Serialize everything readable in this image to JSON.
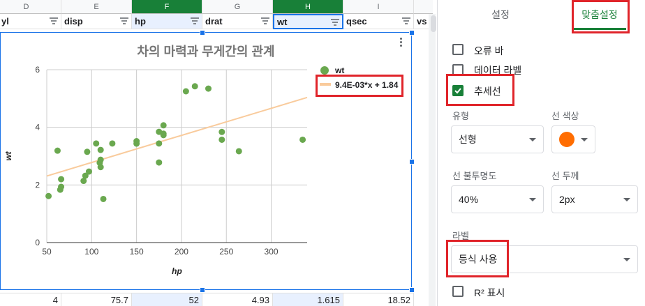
{
  "columns": [
    {
      "letter": "D",
      "header": "yl"
    },
    {
      "letter": "E",
      "header": "disp"
    },
    {
      "letter": "F",
      "header": "hp"
    },
    {
      "letter": "G",
      "header": "drat"
    },
    {
      "letter": "H",
      "header": "wt"
    },
    {
      "letter": "I",
      "header": "qsec"
    },
    {
      "letter": "",
      "header": "vs"
    }
  ],
  "bottom_row": [
    "4",
    "75.7",
    "52",
    "4.93",
    "1.615",
    "18.52"
  ],
  "chart": {
    "title": "차의 마력과 무게간의 관계",
    "legend_series": "wt",
    "legend_trend": "9.4E-03*x + 1.84"
  },
  "chart_data": {
    "type": "scatter",
    "title": "차의 마력과 무게간의 관계",
    "xlabel": "hp",
    "ylabel": "wt",
    "xlim": [
      50,
      340
    ],
    "ylim": [
      0,
      6
    ],
    "xticks": [
      "50",
      "100",
      "150",
      "200",
      "250",
      "300"
    ],
    "yticks": [
      "0",
      "2",
      "4",
      "6"
    ],
    "series": [
      {
        "name": "wt",
        "color": "#6aa84f",
        "points": [
          [
            52,
            1.615
          ],
          [
            62,
            3.19
          ],
          [
            65,
            1.835
          ],
          [
            66,
            1.935
          ],
          [
            66,
            2.2
          ],
          [
            91,
            2.14
          ],
          [
            93,
            2.32
          ],
          [
            95,
            3.15
          ],
          [
            97,
            2.465
          ],
          [
            105,
            3.44
          ],
          [
            109,
            2.77
          ],
          [
            110,
            2.62
          ],
          [
            110,
            2.875
          ],
          [
            110,
            3.215
          ],
          [
            113,
            1.513
          ],
          [
            123,
            3.44
          ],
          [
            150,
            3.52
          ],
          [
            150,
            3.435
          ],
          [
            175,
            3.44
          ],
          [
            175,
            2.78
          ],
          [
            175,
            3.845
          ],
          [
            180,
            4.07
          ],
          [
            180,
            3.73
          ],
          [
            180,
            3.78
          ],
          [
            205,
            5.25
          ],
          [
            215,
            5.424
          ],
          [
            230,
            5.345
          ],
          [
            245,
            3.57
          ],
          [
            245,
            3.84
          ],
          [
            264,
            3.17
          ],
          [
            335,
            3.57
          ]
        ]
      }
    ],
    "trendline": {
      "type": "linear",
      "slope": 0.0094,
      "intercept": 1.84,
      "color": "#f9cb9c",
      "label": "9.4E-03*x + 1.84"
    },
    "grid": true,
    "legend": "right"
  },
  "panel": {
    "tab_setup": "설정",
    "tab_customize": "맞춤설정",
    "error_bar": "오류 바",
    "data_labels": "데이터 라벨",
    "trendline": "추세선",
    "type_label": "유형",
    "type_value": "선형",
    "line_color_label": "선 색상",
    "line_color": "#ff6d01",
    "opacity_label": "선 불투명도",
    "opacity_value": "40%",
    "thickness_label": "선 두께",
    "thickness_value": "2px",
    "label_label": "라벨",
    "label_value": "등식 사용",
    "r2": "R² 표시"
  }
}
